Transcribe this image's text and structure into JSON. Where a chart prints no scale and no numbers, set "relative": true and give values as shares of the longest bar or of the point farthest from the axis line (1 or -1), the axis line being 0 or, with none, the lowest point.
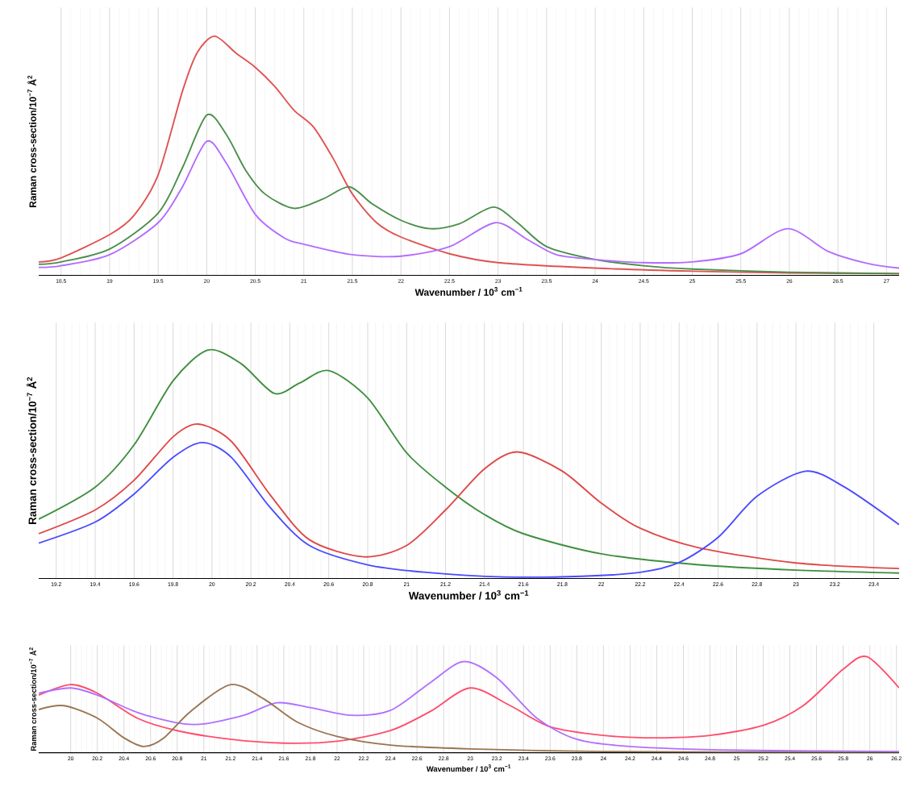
{
  "chart_data": [
    {
      "type": "line",
      "relative": true,
      "xlabel": "Wavenumber / 10$^{3}$ cm$^{−1}$",
      "ylabel": "Raman cross-section/10$^{−7}$ Å$^{2}$",
      "grid": "x",
      "xlim": [
        18.27,
        27.13
      ],
      "xticks": [
        18.5,
        19,
        19.5,
        20,
        20.5,
        21,
        21.5,
        22,
        22.5,
        23,
        23.5,
        24,
        24.5,
        25,
        25.5,
        26,
        26.5,
        27
      ],
      "series": [
        {
          "color": "#e05252",
          "x": [
            18.27,
            18.5,
            19,
            19.25,
            19.5,
            19.75,
            19.9,
            20.08,
            20.3,
            20.5,
            20.7,
            20.9,
            21.1,
            21.3,
            21.5,
            21.75,
            22,
            22.5,
            23,
            24,
            25,
            26,
            27.13
          ],
          "values": [
            0.056,
            0.073,
            0.17,
            0.25,
            0.42,
            0.77,
            0.93,
            1.0,
            0.93,
            0.87,
            0.79,
            0.69,
            0.62,
            0.49,
            0.34,
            0.22,
            0.16,
            0.09,
            0.053,
            0.03,
            0.017,
            0.01,
            0.007
          ]
        },
        {
          "color": "#4a8f4a",
          "x": [
            18.27,
            18.5,
            19,
            19.5,
            19.75,
            20,
            20.2,
            20.4,
            20.6,
            20.9,
            21.2,
            21.47,
            21.7,
            22,
            22.3,
            22.6,
            22.95,
            23.2,
            23.5,
            24,
            24.5,
            25,
            26,
            27.13
          ],
          "values": [
            0.046,
            0.056,
            0.11,
            0.26,
            0.45,
            0.67,
            0.59,
            0.44,
            0.34,
            0.28,
            0.32,
            0.37,
            0.3,
            0.23,
            0.195,
            0.215,
            0.285,
            0.22,
            0.12,
            0.066,
            0.04,
            0.026,
            0.013,
            0.007
          ]
        },
        {
          "color": "#b36bff",
          "x": [
            18.27,
            18.5,
            19,
            19.5,
            19.75,
            20,
            20.2,
            20.5,
            20.8,
            21,
            21.5,
            22,
            22.5,
            22.97,
            23.3,
            23.6,
            24,
            24.5,
            25,
            25.5,
            25.98,
            26.4,
            26.8,
            27.13
          ],
          "values": [
            0.033,
            0.04,
            0.086,
            0.22,
            0.37,
            0.56,
            0.47,
            0.255,
            0.156,
            0.13,
            0.086,
            0.08,
            0.12,
            0.22,
            0.15,
            0.086,
            0.066,
            0.053,
            0.056,
            0.09,
            0.195,
            0.1,
            0.05,
            0.03
          ]
        }
      ]
    },
    {
      "type": "line",
      "relative": true,
      "xlabel": "Wavenumber / 10$^{3}$ cm$^{−1}$",
      "ylabel": "Raman cross-section/10$^{−7}$ Å$^{2}$",
      "grid": "x",
      "xlim": [
        19.11,
        23.53
      ],
      "xticks": [
        19.2,
        19.4,
        19.6,
        19.8,
        20,
        20.2,
        20.4,
        20.6,
        20.8,
        21,
        21.2,
        21.4,
        21.6,
        21.8,
        22,
        22.2,
        22.4,
        22.6,
        22.8,
        23,
        23.2,
        23.4
      ],
      "series": [
        {
          "color": "#3f8f3f",
          "x": [
            19.11,
            19.4,
            19.6,
            19.8,
            19.98,
            20.15,
            20.32,
            20.45,
            20.6,
            20.8,
            21,
            21.2,
            21.4,
            21.6,
            22,
            22.5,
            23,
            23.53
          ],
          "values": [
            0.26,
            0.4,
            0.585,
            0.865,
            1.0,
            0.94,
            0.81,
            0.855,
            0.91,
            0.79,
            0.55,
            0.4,
            0.28,
            0.196,
            0.108,
            0.06,
            0.037,
            0.024
          ]
        },
        {
          "color": "#e04848",
          "x": [
            19.11,
            19.4,
            19.6,
            19.8,
            19.93,
            20.1,
            20.3,
            20.5,
            20.78,
            21,
            21.2,
            21.4,
            21.57,
            21.8,
            22,
            22.2,
            22.5,
            23,
            23.53
          ],
          "values": [
            0.196,
            0.3,
            0.43,
            0.62,
            0.676,
            0.6,
            0.365,
            0.17,
            0.095,
            0.145,
            0.3,
            0.48,
            0.554,
            0.47,
            0.33,
            0.22,
            0.135,
            0.068,
            0.044
          ]
        },
        {
          "color": "#4b4bff",
          "x": [
            19.11,
            19.4,
            19.6,
            19.8,
            19.95,
            20.1,
            20.3,
            20.5,
            20.8,
            21.1,
            21.5,
            21.9,
            22.2,
            22.4,
            22.6,
            22.8,
            23.05,
            23.25,
            23.53
          ],
          "values": [
            0.155,
            0.247,
            0.37,
            0.53,
            0.595,
            0.53,
            0.31,
            0.145,
            0.06,
            0.027,
            0.007,
            0.01,
            0.027,
            0.07,
            0.18,
            0.36,
            0.47,
            0.4,
            0.236
          ]
        }
      ]
    },
    {
      "type": "line",
      "relative": true,
      "xlabel": "Wavenumber / 10$^{3}$ cm$^{−1}$",
      "ylabel": "Raman cross-section/10$^{−7}$ Å$^{2}$",
      "grid": "x",
      "xlim": [
        19.76,
        26.22
      ],
      "xticks": [
        20,
        20.2,
        20.4,
        20.6,
        20.8,
        21,
        21.2,
        21.4,
        21.6,
        21.8,
        22,
        22.2,
        22.4,
        22.6,
        22.8,
        23,
        23.2,
        23.4,
        23.6,
        23.8,
        24,
        24.2,
        24.4,
        24.6,
        24.8,
        25,
        25.2,
        25.4,
        25.6,
        25.8,
        26,
        26.2
      ],
      "series": [
        {
          "color": "#ff4d6d",
          "x": [
            19.76,
            20,
            20.2,
            20.5,
            20.8,
            21.2,
            21.6,
            22,
            22.4,
            22.7,
            23,
            23.3,
            23.6,
            24,
            24.4,
            24.8,
            25.2,
            25.5,
            25.8,
            25.98,
            26.22
          ],
          "values": [
            0.6,
            0.71,
            0.62,
            0.36,
            0.23,
            0.14,
            0.1,
            0.12,
            0.23,
            0.43,
            0.675,
            0.49,
            0.27,
            0.18,
            0.155,
            0.18,
            0.285,
            0.49,
            0.87,
            1.0,
            0.675
          ]
        },
        {
          "color": "#b070ff",
          "x": [
            19.76,
            20,
            20.2,
            20.5,
            20.8,
            21,
            21.3,
            21.55,
            21.8,
            22.1,
            22.4,
            22.7,
            22.95,
            23.2,
            23.5,
            23.8,
            24.2,
            25,
            26.22
          ],
          "values": [
            0.62,
            0.675,
            0.6,
            0.42,
            0.31,
            0.3,
            0.39,
            0.52,
            0.47,
            0.39,
            0.44,
            0.73,
            0.95,
            0.78,
            0.36,
            0.14,
            0.065,
            0.026,
            0.013
          ]
        },
        {
          "color": "#9a7550",
          "x": [
            19.76,
            19.95,
            20.2,
            20.4,
            20.55,
            20.7,
            20.9,
            21.2,
            21.45,
            21.7,
            22,
            22.4,
            23,
            24,
            26.22
          ],
          "values": [
            0.45,
            0.49,
            0.36,
            0.155,
            0.065,
            0.155,
            0.43,
            0.71,
            0.56,
            0.32,
            0.17,
            0.08,
            0.04,
            0.013,
            0
          ]
        }
      ]
    }
  ]
}
